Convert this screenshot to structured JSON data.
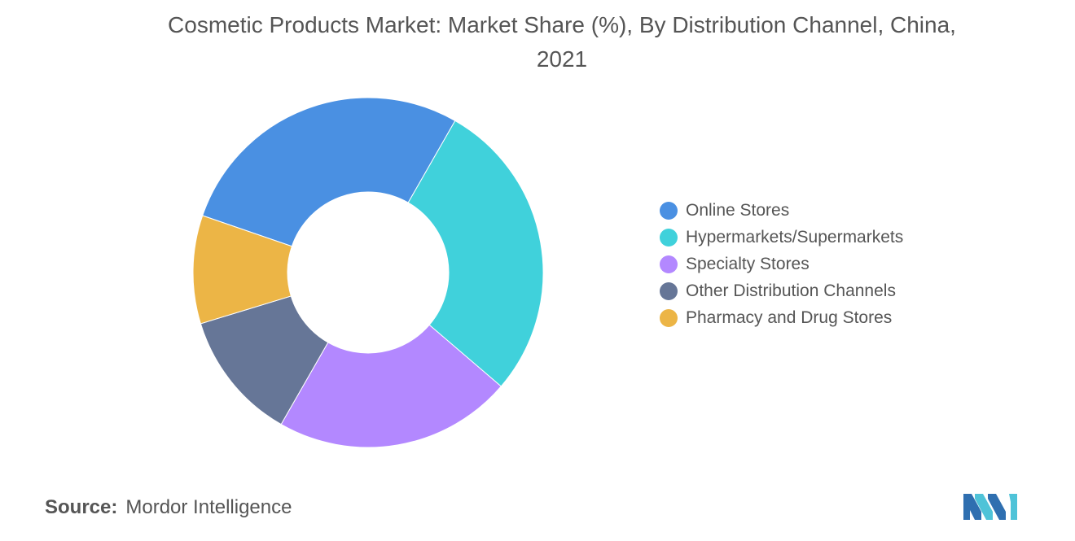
{
  "title_line1": "Cosmetic Products Market: Market Share (%), By Distribution Channel, China,",
  "title_line2": "2021",
  "chart_data": {
    "type": "pie",
    "subtype": "donut",
    "title": "Cosmetic Products Market: Market Share (%), By Distribution Channel, China, 2021",
    "categories": [
      "Online Stores",
      "Hypermarkets/Supermarkets",
      "Specialty Stores",
      "Other Distribution Channels",
      "Pharmacy and Drug Stores"
    ],
    "values": [
      28,
      28,
      22,
      12,
      10
    ],
    "colors": [
      "#4a90e2",
      "#40d1db",
      "#b388ff",
      "#667697",
      "#ecb546"
    ],
    "legend_position": "right"
  },
  "source_label": "Source:",
  "source_value": "Mordor Intelligence",
  "logo_icon": "mordor-intelligence-logo"
}
